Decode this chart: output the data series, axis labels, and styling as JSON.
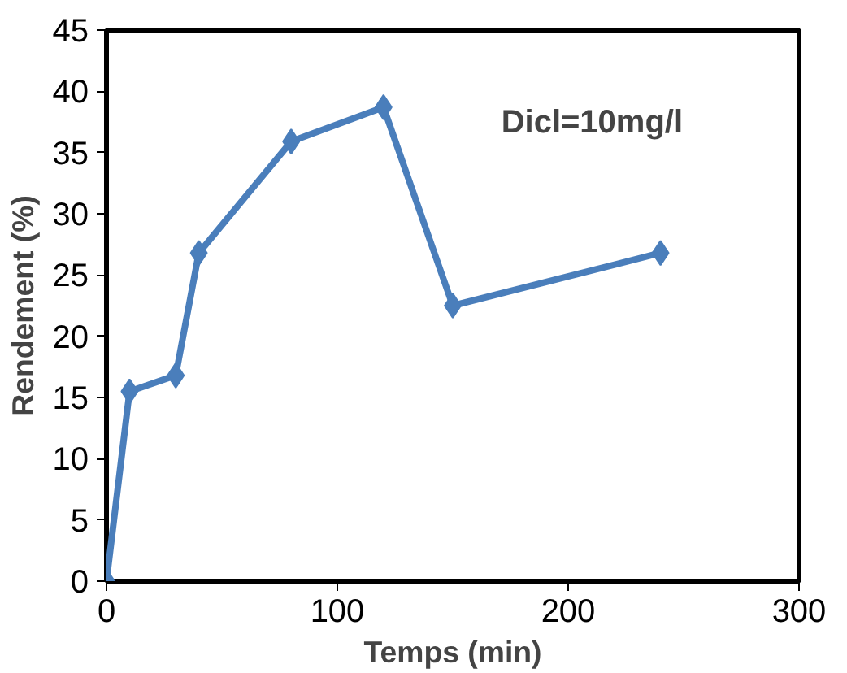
{
  "chart_data": {
    "type": "line",
    "xlabel": "Temps (min)",
    "ylabel": "Rendement (%)",
    "annotations": [
      "Dicl=10mg/l"
    ],
    "x": [
      0,
      10,
      30,
      40,
      80,
      120,
      150,
      240
    ],
    "series": [
      {
        "color": "#4a7ebb",
        "values": [
          0,
          15.5,
          16.8,
          26.8,
          35.9,
          38.7,
          22.5,
          26.8
        ]
      }
    ],
    "xlim": [
      0,
      300
    ],
    "xticks": [
      0,
      100,
      200,
      300
    ],
    "ylim": [
      0,
      45
    ],
    "yticks": [
      0,
      5,
      10,
      15,
      20,
      25,
      30,
      35,
      40,
      45
    ],
    "grid": false,
    "marker": "diamond",
    "line_style": "solid"
  }
}
